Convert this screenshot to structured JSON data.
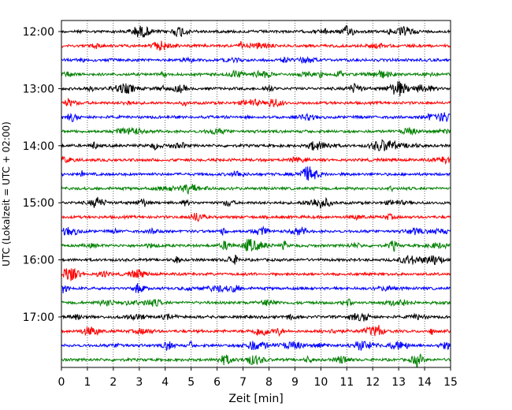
{
  "chart_data": {
    "type": "line",
    "title": "",
    "xlabel": "Zeit  [min]",
    "ylabel": "UTC (Lokalzeit = UTC + 02:00)",
    "xlim": [
      0,
      15
    ],
    "x_ticks": [
      0,
      1,
      2,
      3,
      4,
      5,
      6,
      7,
      8,
      9,
      10,
      11,
      12,
      13,
      14,
      15
    ],
    "x_tick_labels": [
      "0",
      "1",
      "2",
      "3",
      "4",
      "5",
      "6",
      "7",
      "8",
      "9",
      "10",
      "11",
      "12",
      "13",
      "14",
      "15"
    ],
    "y_tick_labels": [
      "12:00",
      "13:00",
      "14:00",
      "15:00",
      "16:00",
      "17:00"
    ],
    "grid": "vertical dotted at each minute",
    "trace_interval_min": 15,
    "color_cycle": [
      "#000000",
      "#ff0000",
      "#0000ff",
      "#008000"
    ],
    "traces": [
      {
        "start": "12:00",
        "color": "#000000"
      },
      {
        "start": "12:15",
        "color": "#ff0000"
      },
      {
        "start": "12:30",
        "color": "#0000ff"
      },
      {
        "start": "12:45",
        "color": "#008000"
      },
      {
        "start": "13:00",
        "color": "#000000"
      },
      {
        "start": "13:15",
        "color": "#ff0000"
      },
      {
        "start": "13:30",
        "color": "#0000ff"
      },
      {
        "start": "13:45",
        "color": "#008000"
      },
      {
        "start": "14:00",
        "color": "#000000"
      },
      {
        "start": "14:15",
        "color": "#ff0000"
      },
      {
        "start": "14:30",
        "color": "#0000ff"
      },
      {
        "start": "14:45",
        "color": "#008000"
      },
      {
        "start": "15:00",
        "color": "#000000"
      },
      {
        "start": "15:15",
        "color": "#ff0000"
      },
      {
        "start": "15:30",
        "color": "#0000ff"
      },
      {
        "start": "15:45",
        "color": "#008000"
      },
      {
        "start": "16:00",
        "color": "#000000"
      },
      {
        "start": "16:15",
        "color": "#ff0000"
      },
      {
        "start": "16:30",
        "color": "#0000ff"
      },
      {
        "start": "16:45",
        "color": "#008000"
      },
      {
        "start": "17:00",
        "color": "#000000"
      },
      {
        "start": "17:15",
        "color": "#ff0000"
      },
      {
        "start": "17:30",
        "color": "#0000ff"
      },
      {
        "start": "17:45",
        "color": "#008000"
      }
    ]
  }
}
